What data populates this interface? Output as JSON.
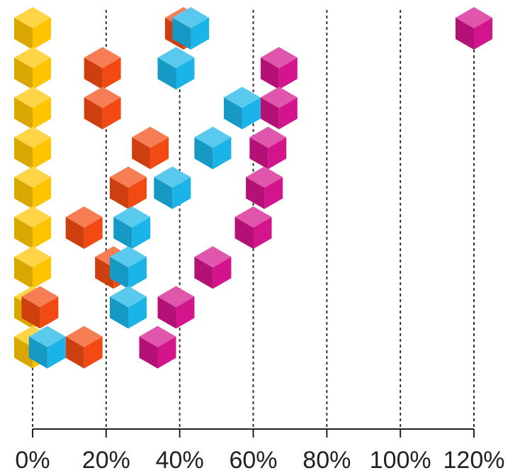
{
  "chart_data": {
    "type": "scatter",
    "xlim": [
      0,
      120
    ],
    "x_ticks": [
      "0%",
      "20%",
      "40%",
      "60%",
      "80%",
      "100%",
      "120%"
    ],
    "x_tick_values": [
      0,
      20,
      40,
      60,
      80,
      100,
      120
    ],
    "grid": "vertical dotted lines at each tick",
    "rows": 9,
    "series": [
      {
        "color": "#FFC400",
        "points": [
          {
            "row": 1,
            "x": 0
          },
          {
            "row": 2,
            "x": 0
          },
          {
            "row": 3,
            "x": 0
          },
          {
            "row": 4,
            "x": 0
          },
          {
            "row": 5,
            "x": 0
          },
          {
            "row": 6,
            "x": 0
          },
          {
            "row": 7,
            "x": 0
          },
          {
            "row": 8,
            "x": 0
          },
          {
            "row": 9,
            "x": 0
          }
        ]
      },
      {
        "color": "#F24A12",
        "points": [
          {
            "row": 1,
            "x": 41
          },
          {
            "row": 2,
            "x": 19
          },
          {
            "row": 3,
            "x": 19
          },
          {
            "row": 4,
            "x": 32
          },
          {
            "row": 5,
            "x": 26
          },
          {
            "row": 6,
            "x": 14
          },
          {
            "row": 7,
            "x": 22
          },
          {
            "row": 8,
            "x": 2
          },
          {
            "row": 9,
            "x": 14
          }
        ]
      },
      {
        "color": "#1AB4E8",
        "points": [
          {
            "row": 1,
            "x": 43
          },
          {
            "row": 2,
            "x": 39
          },
          {
            "row": 3,
            "x": 57
          },
          {
            "row": 4,
            "x": 49
          },
          {
            "row": 5,
            "x": 38
          },
          {
            "row": 6,
            "x": 27
          },
          {
            "row": 7,
            "x": 26
          },
          {
            "row": 8,
            "x": 26
          },
          {
            "row": 9,
            "x": 4
          }
        ]
      },
      {
        "color": "#D4148C",
        "points": [
          {
            "row": 1,
            "x": 120
          },
          {
            "row": 2,
            "x": 67
          },
          {
            "row": 3,
            "x": 67
          },
          {
            "row": 4,
            "x": 64
          },
          {
            "row": 5,
            "x": 63
          },
          {
            "row": 6,
            "x": 60
          },
          {
            "row": 7,
            "x": 49
          },
          {
            "row": 8,
            "x": 39
          },
          {
            "row": 9,
            "x": 34
          }
        ]
      }
    ]
  }
}
